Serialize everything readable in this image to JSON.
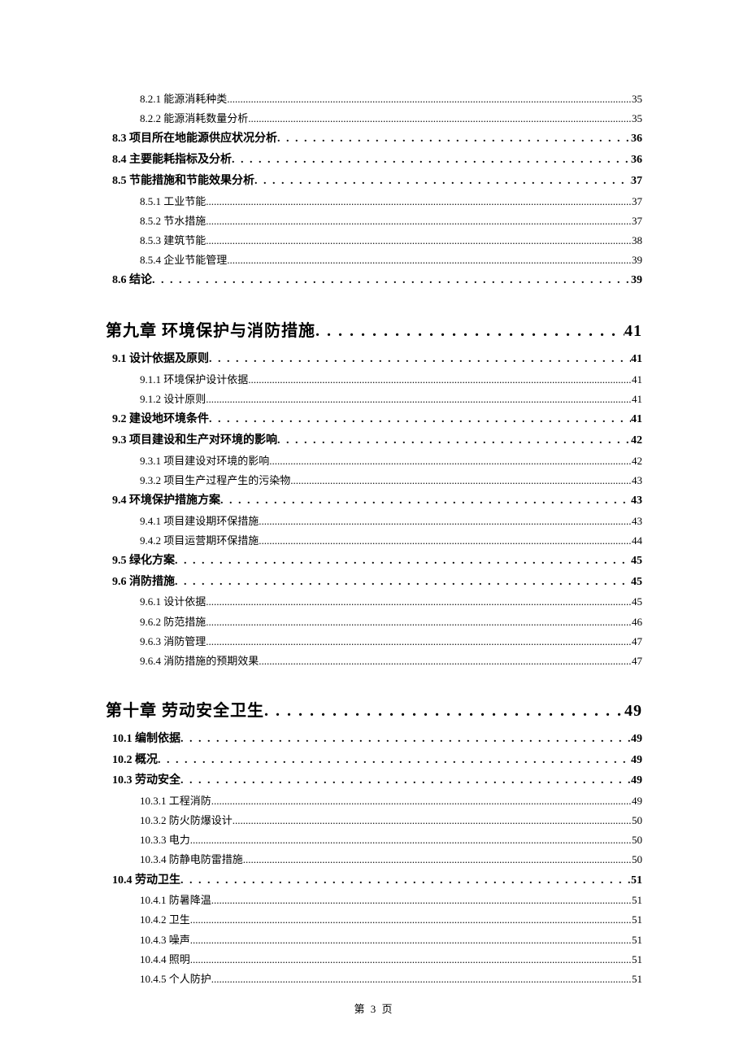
{
  "toc": [
    {
      "level": 3,
      "label": "8.2.1 能源消耗种类",
      "page": "35"
    },
    {
      "level": 3,
      "label": "8.2.2 能源消耗数量分析",
      "page": "35"
    },
    {
      "level": 2,
      "label": "8.3 项目所在地能源供应状况分析",
      "page": "36"
    },
    {
      "level": 2,
      "label": "8.4 主要能耗指标及分析",
      "page": "36"
    },
    {
      "level": 2,
      "label": "8.5 节能措施和节能效果分析",
      "page": "37"
    },
    {
      "level": 3,
      "label": "8.5.1 工业节能",
      "page": "37"
    },
    {
      "level": 3,
      "label": "8.5.2 节水措施",
      "page": "37"
    },
    {
      "level": 3,
      "label": "8.5.3 建筑节能",
      "page": "38"
    },
    {
      "level": 3,
      "label": "8.5.4 企业节能管理",
      "page": "39"
    },
    {
      "level": 2,
      "label": "8.6 结论",
      "page": "39"
    },
    {
      "level": 1,
      "label": "第九章  环境保护与消防措施",
      "page": "41"
    },
    {
      "level": 2,
      "label": "9.1 设计依据及原则",
      "page": "41"
    },
    {
      "level": 3,
      "label": "9.1.1 环境保护设计依据",
      "page": "41"
    },
    {
      "level": 3,
      "label": "9.1.2 设计原则",
      "page": "41"
    },
    {
      "level": 2,
      "label": "9.2 建设地环境条件",
      "page": "41"
    },
    {
      "level": 2,
      "label": "9.3  项目建设和生产对环境的影响",
      "page": "42"
    },
    {
      "level": 3,
      "label": "9.3.1  项目建设对环境的影响",
      "page": "42"
    },
    {
      "level": 3,
      "label": "9.3.2  项目生产过程产生的污染物",
      "page": "43"
    },
    {
      "level": 2,
      "label": "9.4  环境保护措施方案",
      "page": "43"
    },
    {
      "level": 3,
      "label": "9.4.1  项目建设期环保措施",
      "page": "43"
    },
    {
      "level": 3,
      "label": "9.4.2  项目运营期环保措施",
      "page": "44"
    },
    {
      "level": 2,
      "label": "9.5 绿化方案",
      "page": "45"
    },
    {
      "level": 2,
      "label": "9.6 消防措施",
      "page": "45"
    },
    {
      "level": 3,
      "label": "9.6.1 设计依据",
      "page": "45"
    },
    {
      "level": 3,
      "label": "9.6.2 防范措施",
      "page": "46"
    },
    {
      "level": 3,
      "label": "9.6.3 消防管理",
      "page": "47"
    },
    {
      "level": 3,
      "label": "9.6.4 消防措施的预期效果",
      "page": "47"
    },
    {
      "level": 1,
      "label": "第十章  劳动安全卫生",
      "page": "49"
    },
    {
      "level": 2,
      "label": "10.1  编制依据",
      "page": "49"
    },
    {
      "level": 2,
      "label": "10.2 概况",
      "page": "49"
    },
    {
      "level": 2,
      "label": "10.3  劳动安全",
      "page": "49"
    },
    {
      "level": 3,
      "label": "10.3.1 工程消防",
      "page": "49"
    },
    {
      "level": 3,
      "label": "10.3.2 防火防爆设计",
      "page": "50"
    },
    {
      "level": 3,
      "label": "10.3.3 电力",
      "page": "50"
    },
    {
      "level": 3,
      "label": "10.3.4 防静电防雷措施",
      "page": "50"
    },
    {
      "level": 2,
      "label": "10.4 劳动卫生",
      "page": "51"
    },
    {
      "level": 3,
      "label": "10.4.1 防暑降温",
      "page": "51"
    },
    {
      "level": 3,
      "label": "10.4.2 卫生",
      "page": "51"
    },
    {
      "level": 3,
      "label": "10.4.3 噪声",
      "page": "51"
    },
    {
      "level": 3,
      "label": "10.4.4 照明",
      "page": "51"
    },
    {
      "level": 3,
      "label": "10.4.5 个人防护",
      "page": "51"
    }
  ],
  "footer": "第 3 页"
}
